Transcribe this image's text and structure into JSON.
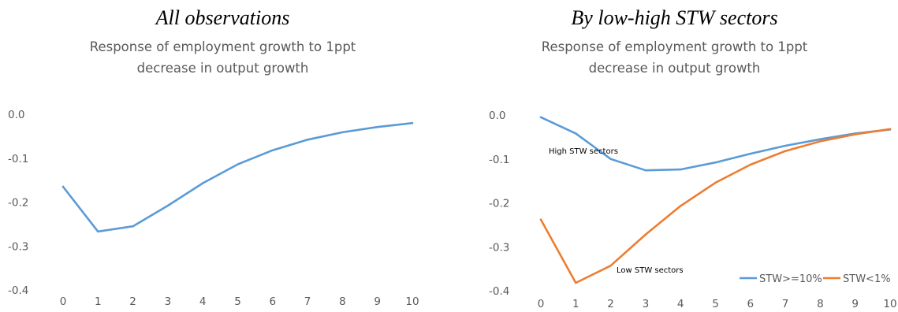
{
  "chart_data": [
    {
      "type": "line",
      "heading": "All observations",
      "title_lines": [
        "Response of employment growth to 1ppt",
        "decrease in output growth"
      ],
      "x": [
        0,
        1,
        2,
        3,
        4,
        5,
        6,
        7,
        8,
        9,
        10
      ],
      "ylim": [
        -0.4,
        0.0
      ],
      "yticks": [
        "0.0",
        "-0.1",
        "-0.2",
        "-0.3",
        "-0.4"
      ],
      "grid": false,
      "series": [
        {
          "color": "#5b9bd5",
          "values": [
            -0.165,
            -0.267,
            -0.255,
            -0.208,
            -0.157,
            -0.114,
            -0.082,
            -0.058,
            -0.041,
            -0.029,
            -0.02
          ]
        }
      ]
    },
    {
      "type": "line",
      "heading": "By low-high STW sectors",
      "title_lines": [
        "Response of employment growth to 1ppt",
        "decrease in output growth"
      ],
      "x": [
        0,
        1,
        2,
        3,
        4,
        5,
        6,
        7,
        8,
        9,
        10
      ],
      "ylim": [
        -0.4,
        0.0
      ],
      "yticks": [
        "0.0",
        "-0.1",
        "-0.2",
        "-0.3",
        "-0.4"
      ],
      "grid": false,
      "legend_position": "bottom-right",
      "series": [
        {
          "name": "STW>=10%",
          "color": "#5b9bd5",
          "values": [
            -0.005,
            -0.042,
            -0.1,
            -0.126,
            -0.124,
            -0.108,
            -0.088,
            -0.07,
            -0.055,
            -0.042,
            -0.033
          ]
        },
        {
          "name": "STW<1%",
          "color": "#ed7d31",
          "values": [
            -0.238,
            -0.382,
            -0.343,
            -0.272,
            -0.207,
            -0.154,
            -0.113,
            -0.082,
            -0.06,
            -0.044,
            -0.032
          ]
        }
      ],
      "annotations": [
        "High STW sectors",
        "Low STW sectors"
      ]
    }
  ]
}
